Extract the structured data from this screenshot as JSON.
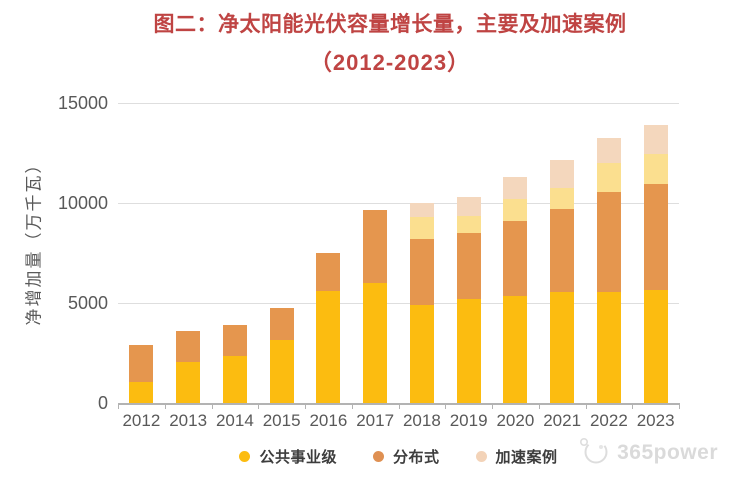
{
  "title": {
    "line1": "图二：净太阳能光伏容量增长量，主要及加速案例",
    "line2": "（2012-2023）",
    "color": "#bf4443"
  },
  "chart_data": {
    "type": "bar",
    "stacked": true,
    "title": "图二：净太阳能光伏容量增长量，主要及加速案例（2012-2023）",
    "xlabel": "",
    "ylabel": "净增加量（万千瓦）",
    "categories": [
      "2012",
      "2013",
      "2014",
      "2015",
      "2016",
      "2017",
      "2018",
      "2019",
      "2020",
      "2021",
      "2022",
      "2023"
    ],
    "series": [
      {
        "name": "公共事业级",
        "color": "#fcbc10",
        "values": [
          1050,
          2050,
          2350,
          3150,
          5600,
          6000,
          4900,
          5200,
          5350,
          5550,
          5550,
          5650
        ]
      },
      {
        "name": "分布式",
        "color": "#e5964e",
        "values": [
          1850,
          1550,
          1550,
          1600,
          1900,
          3650,
          3300,
          3300,
          3750,
          4150,
          5000,
          5300
        ]
      },
      {
        "name": "加速案例",
        "color": "#fbdf8f",
        "values": [
          0,
          0,
          0,
          0,
          0,
          0,
          1100,
          850,
          1100,
          1050,
          1450,
          1500
        ]
      },
      {
        "name": "加速案例",
        "color": "#f4d7bd",
        "values": [
          0,
          0,
          0,
          0,
          0,
          0,
          700,
          950,
          1100,
          1400,
          1250,
          1450
        ]
      }
    ],
    "stack_totals": [
      2900,
      3600,
      3900,
      4750,
      7500,
      9650,
      10000,
      10300,
      11300,
      12150,
      13250,
      13900
    ],
    "ylim": [
      0,
      15000
    ],
    "yticks": [
      0,
      5000,
      10000,
      15000
    ],
    "grid": true,
    "legend_position": "bottom",
    "legend": [
      {
        "label": "公共事业级",
        "color": "#fcbc10"
      },
      {
        "label": "分布式",
        "color": "#df9052"
      },
      {
        "label": "加速案例",
        "color": "#f3d3b8"
      }
    ]
  },
  "colors": {
    "title_text": "#bf4443",
    "axis_text": "#595959",
    "gridline": "#dedede",
    "axis_line": "#b3b3b3",
    "legend_text": "#3d3d3d",
    "watermark_text": "#d4d4d4"
  },
  "watermark": {
    "text": "365power",
    "logo": "365power-logo"
  }
}
